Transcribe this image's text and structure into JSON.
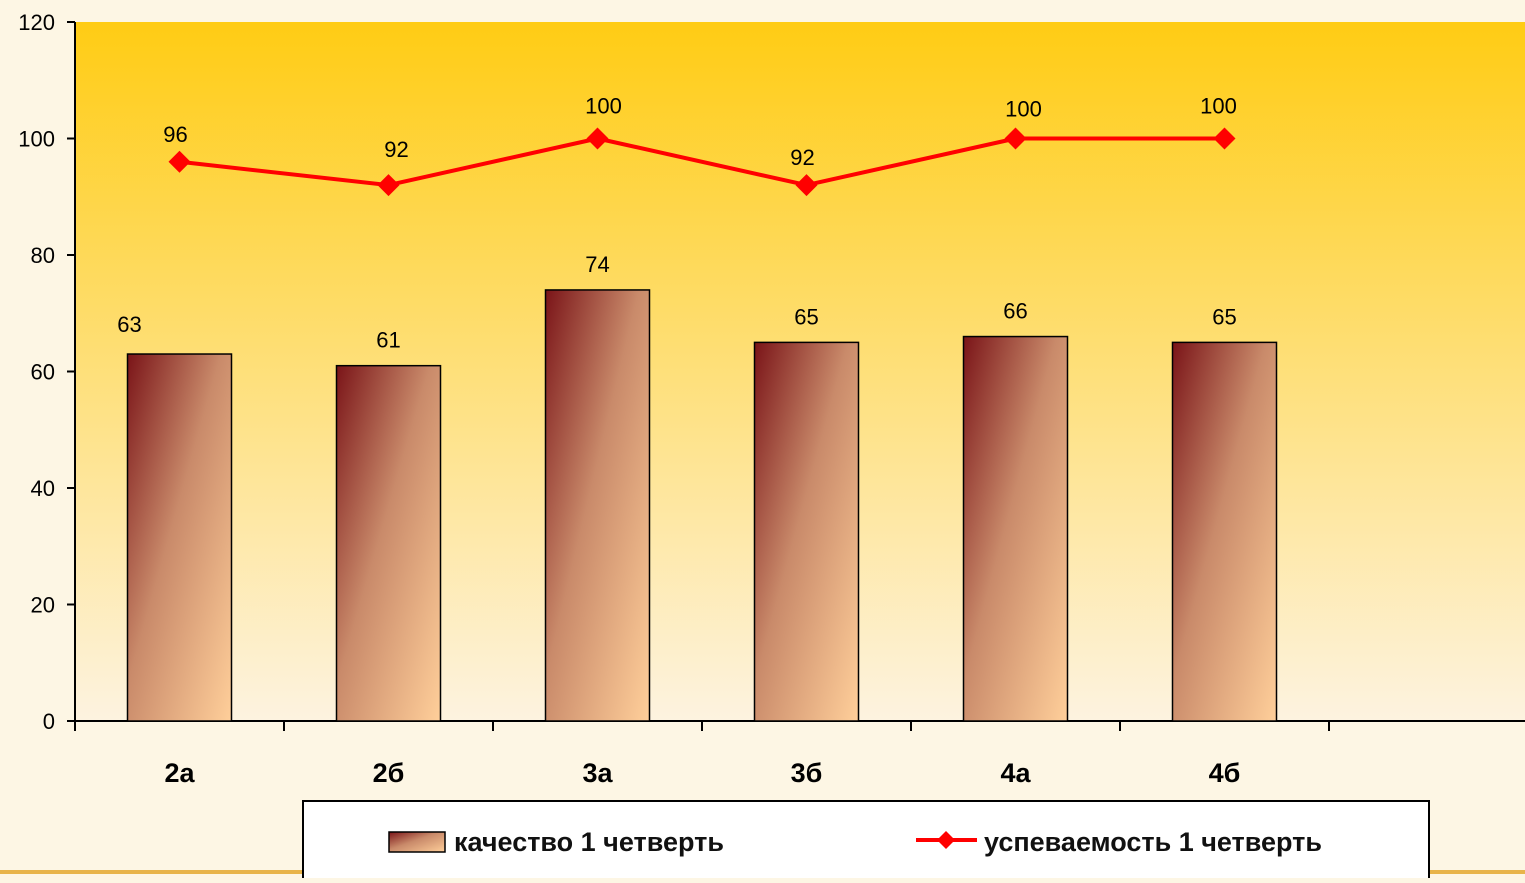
{
  "chart_data": {
    "type": "bar",
    "categories": [
      "2а",
      "2б",
      "3а",
      "3б",
      "4а",
      "4б"
    ],
    "ylim": [
      0,
      120
    ],
    "yticks": [
      0,
      20,
      40,
      60,
      80,
      100,
      120
    ],
    "grid": false,
    "legend_position": "bottom",
    "series": [
      {
        "name": "качество 1 четверть",
        "type": "bar",
        "values": [
          63,
          61,
          74,
          65,
          66,
          65
        ],
        "labels": [
          "63",
          "61",
          "74",
          "65",
          "66",
          "65"
        ],
        "color_dark": "#7a1418",
        "color_light": "#ffcf9a"
      },
      {
        "name": "успеваемость 1 четверть",
        "type": "line",
        "values": [
          96,
          92,
          100,
          92,
          100,
          100
        ],
        "labels": [
          "96",
          "92",
          "100",
          "92",
          "100",
          "100"
        ],
        "color": "#ff0000"
      }
    ],
    "colors": {
      "plot_top": "#ffcc14",
      "plot_bottom": "#fdf3e0",
      "page_background": "#fdf6e4",
      "axis": "#000000",
      "bottom_rule": "#e8b44a"
    }
  }
}
